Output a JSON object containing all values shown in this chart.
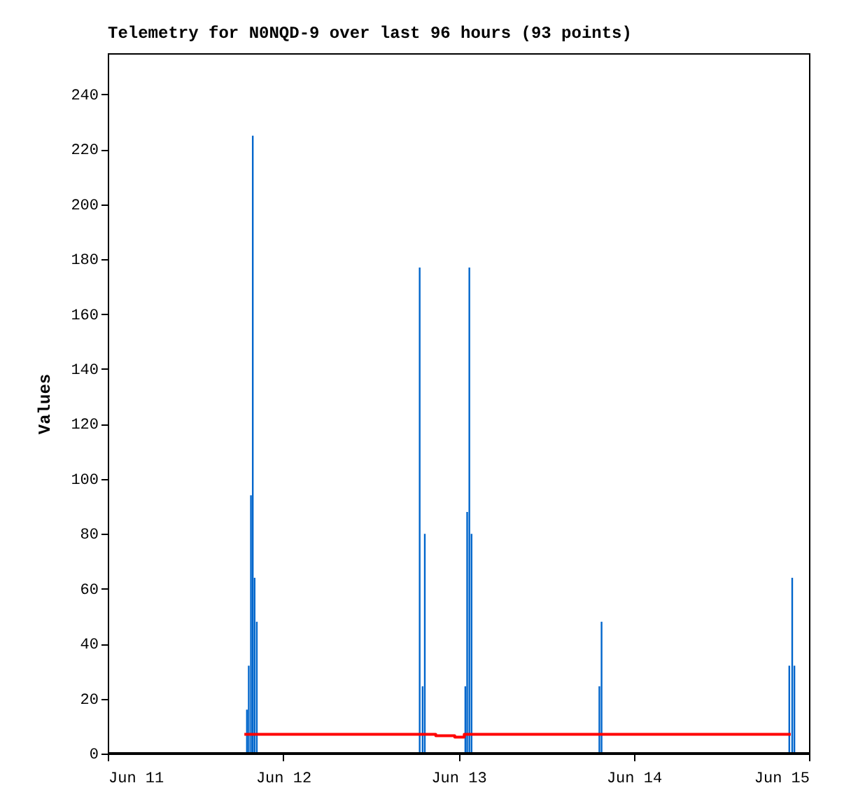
{
  "chart_data": {
    "type": "bar",
    "title": "Telemetry for N0NQD-9 over last 96 hours (93 points)",
    "ylabel": "Values",
    "xlim": [
      "--06-11",
      "--06-15"
    ],
    "xticks": [
      {
        "value": "--06-11",
        "label": "Jun 11"
      },
      {
        "value": "--06-12",
        "label": "Jun 12"
      },
      {
        "value": "--06-13",
        "label": "Jun 13"
      },
      {
        "value": "--06-14",
        "label": "Jun 14"
      },
      {
        "value": "--06-15",
        "label": "Jun 15"
      }
    ],
    "ylim": [
      0,
      255
    ],
    "yticks": [
      0,
      20,
      40,
      60,
      80,
      100,
      120,
      140,
      160,
      180,
      200,
      220,
      240
    ],
    "series": [
      {
        "type": "step",
        "color": "#ff0000",
        "x": [
          "--06-11T18:42",
          "--06-12T20:54",
          "--06-12T23:30",
          "--06-13T00:48",
          "--06-14T21:30"
        ],
        "values": [
          7,
          6.5,
          6,
          7,
          7
        ]
      },
      {
        "color": "#0066cc",
        "x": [
          "--06-11T19:03",
          "--06-11T19:18",
          "--06-11T19:36",
          "--06-11T19:51",
          "--06-11T20:06",
          "--06-11T20:24",
          "--06-12T18:42",
          "--06-12T19:06",
          "--06-12T19:24",
          "--06-13T00:57",
          "--06-13T01:12",
          "--06-13T01:30",
          "--06-13T01:48",
          "--06-13T19:18",
          "--06-13T19:36",
          "--06-14T21:18",
          "--06-14T21:42",
          "--06-14T22:00"
        ],
        "values": [
          16,
          32,
          94,
          225,
          64,
          48,
          177,
          24.5,
          80,
          24.5,
          88,
          177,
          80,
          24.5,
          48,
          32,
          64,
          32
        ]
      },
      {
        "type": "line",
        "color": "#000000",
        "x": [
          "--06-11",
          "--06-15"
        ],
        "values": [
          0,
          0
        ]
      }
    ]
  }
}
